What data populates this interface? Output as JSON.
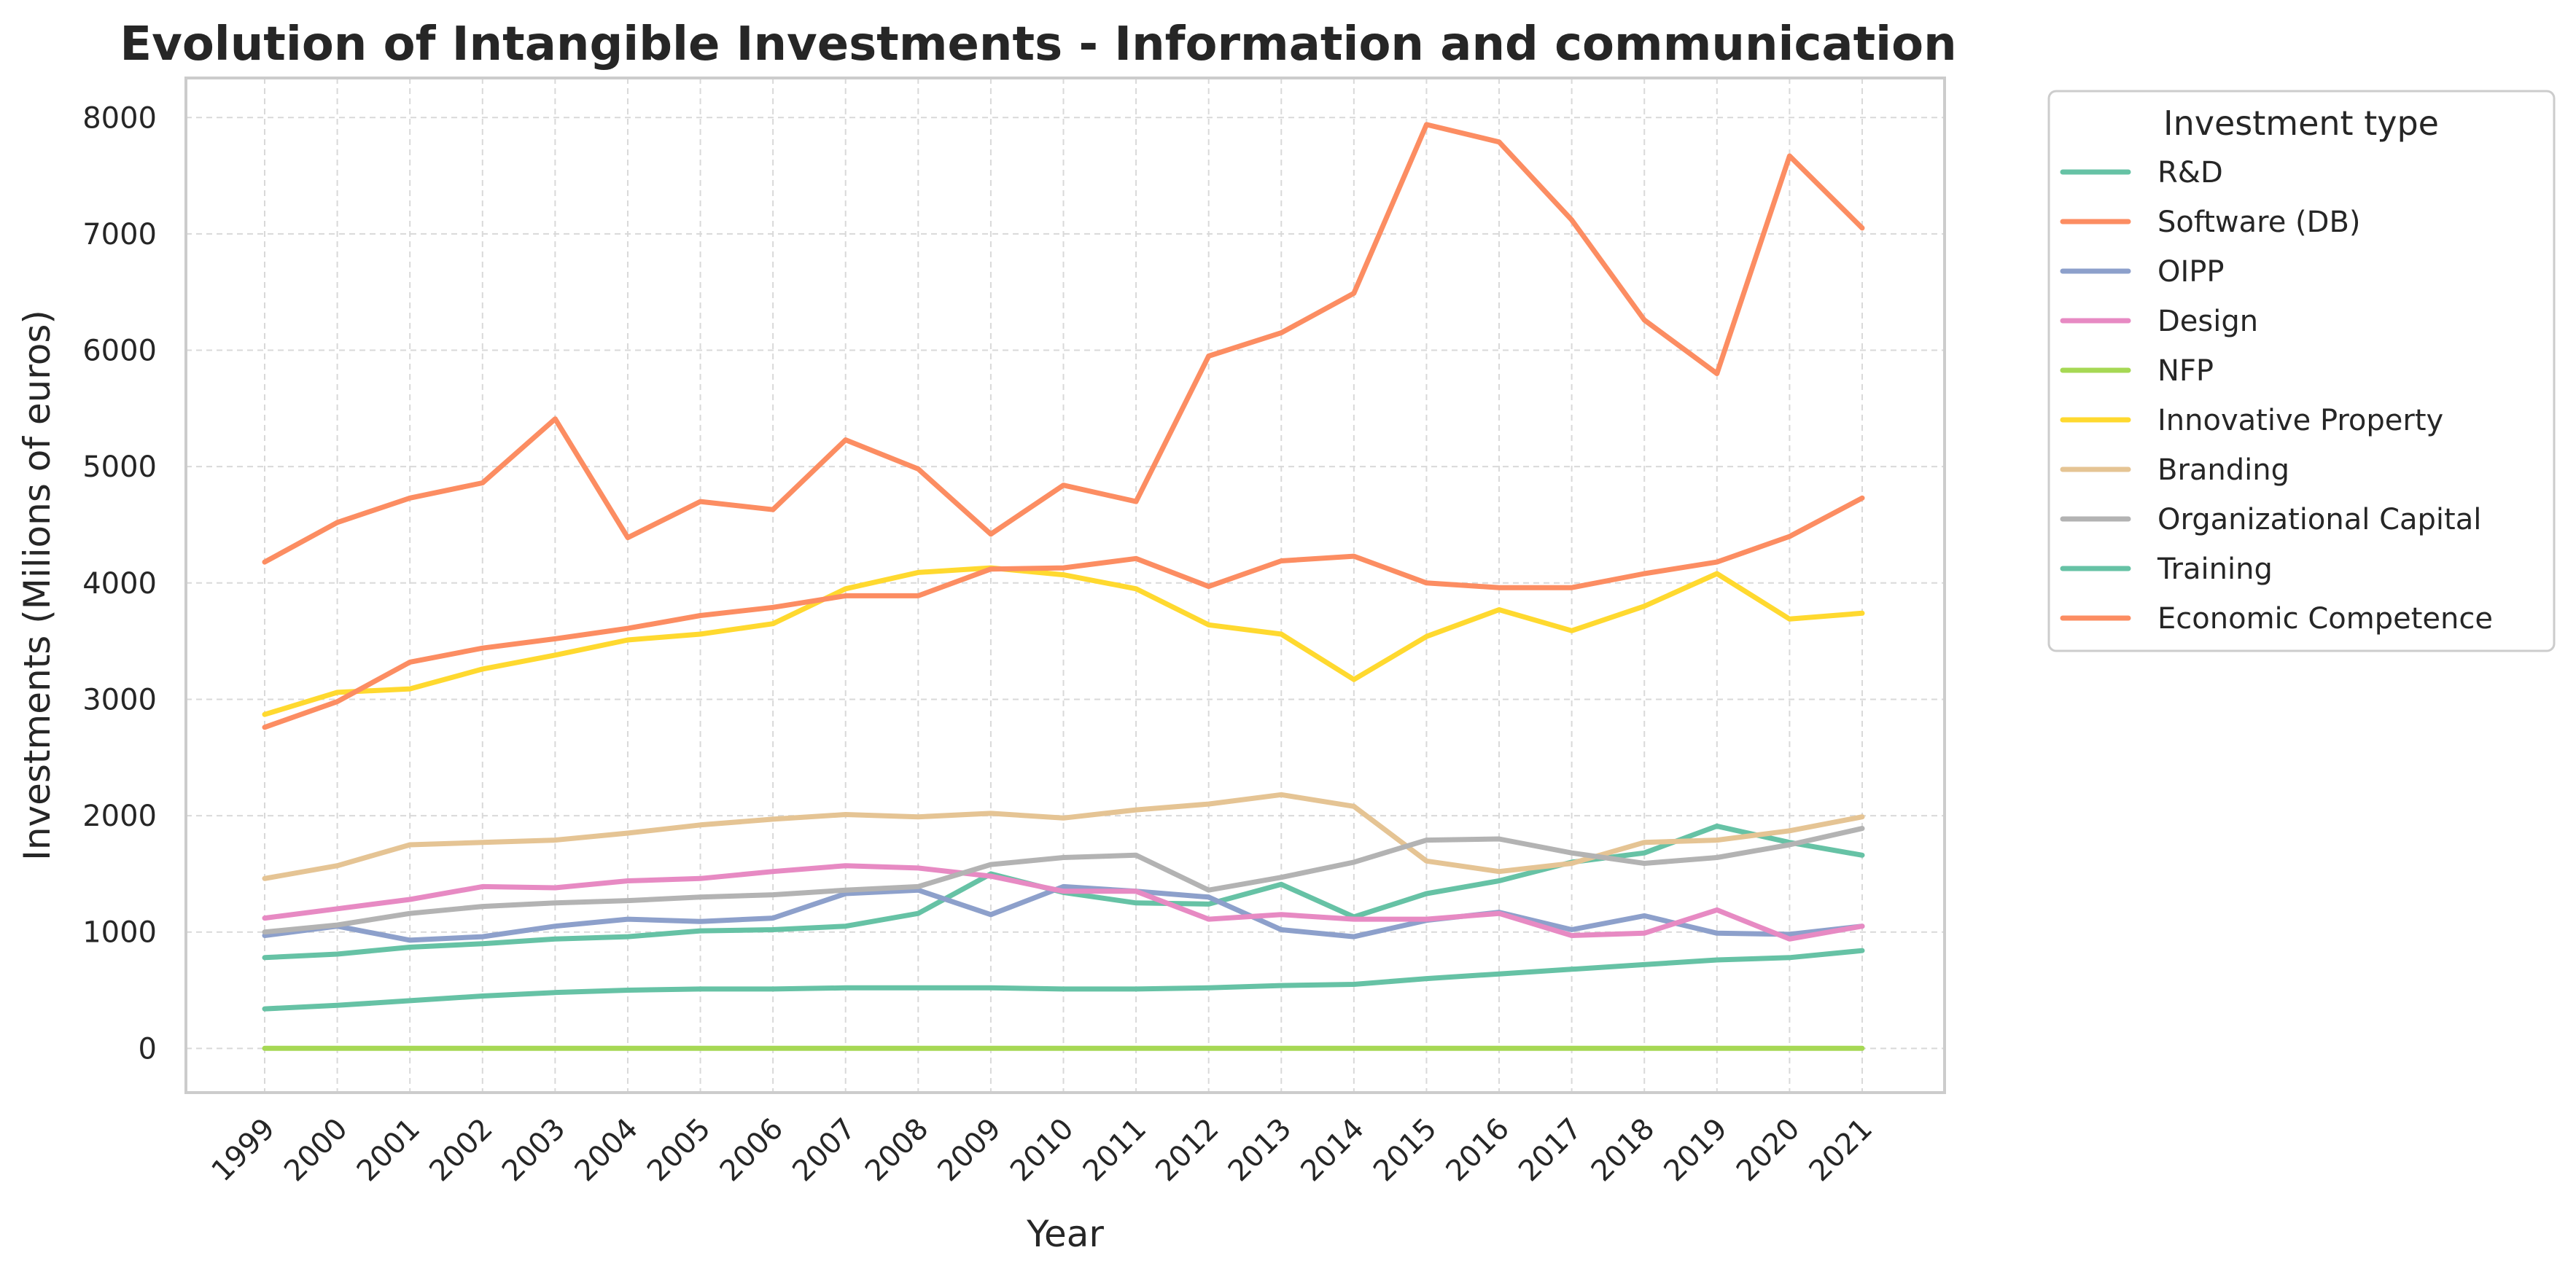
{
  "chart_data": {
    "type": "line",
    "title": "Evolution of Intangible Investments - Information and communication",
    "xlabel": "Year",
    "ylabel": "Investments (Milions of euros)",
    "ylim": [
      -380,
      8340
    ],
    "yticks": [
      0,
      1000,
      2000,
      3000,
      4000,
      5000,
      6000,
      7000,
      8000
    ],
    "grid": true,
    "legend_title": "Investment type",
    "legend_position": "outside-right-top",
    "x": [
      "1999",
      "2000",
      "2001",
      "2002",
      "2003",
      "2004",
      "2005",
      "2006",
      "2007",
      "2008",
      "2009",
      "2010",
      "2011",
      "2012",
      "2013",
      "2014",
      "2015",
      "2016",
      "2017",
      "2018",
      "2019",
      "2020",
      "2021"
    ],
    "series": [
      {
        "name": "R&D",
        "color": "#66c2a5",
        "values": [
          780,
          810,
          870,
          900,
          940,
          960,
          1010,
          1020,
          1050,
          1160,
          1500,
          1340,
          1250,
          1240,
          1410,
          1130,
          1330,
          1440,
          1600,
          1680,
          1910,
          1770,
          1660
        ]
      },
      {
        "name": "Software (DB)",
        "color": "#fc8d62",
        "values": [
          4180,
          4520,
          4730,
          4860,
          5410,
          4390,
          4700,
          4630,
          5230,
          4980,
          4420,
          4840,
          4700,
          5950,
          6150,
          6490,
          7940,
          7790,
          7120,
          6260,
          5800,
          7670,
          7050
        ]
      },
      {
        "name": "OIPP",
        "color": "#8da0cb",
        "values": [
          970,
          1050,
          930,
          960,
          1050,
          1110,
          1090,
          1120,
          1330,
          1360,
          1150,
          1390,
          1350,
          1300,
          1020,
          960,
          1100,
          1170,
          1020,
          1140,
          990,
          980,
          1050
        ]
      },
      {
        "name": "Design",
        "color": "#e78ac3",
        "values": [
          1120,
          1200,
          1280,
          1390,
          1380,
          1440,
          1460,
          1520,
          1570,
          1550,
          1480,
          1350,
          1350,
          1110,
          1150,
          1110,
          1110,
          1160,
          970,
          990,
          1190,
          940,
          1050
        ]
      },
      {
        "name": "NFP",
        "color": "#a6d854",
        "values": [
          0,
          0,
          0,
          0,
          0,
          0,
          0,
          0,
          0,
          0,
          0,
          0,
          0,
          0,
          0,
          0,
          0,
          0,
          0,
          0,
          0,
          0,
          0
        ]
      },
      {
        "name": "Innovative Property",
        "color": "#ffd92f",
        "values": [
          2870,
          3060,
          3090,
          3260,
          3380,
          3510,
          3560,
          3650,
          3950,
          4090,
          4130,
          4070,
          3950,
          3640,
          3560,
          3170,
          3540,
          3770,
          3590,
          3800,
          4080,
          3690,
          3740
        ]
      },
      {
        "name": "Branding",
        "color": "#e5c494",
        "values": [
          1460,
          1570,
          1750,
          1770,
          1790,
          1850,
          1920,
          1970,
          2010,
          1990,
          2020,
          1980,
          2050,
          2100,
          2180,
          2080,
          1610,
          1520,
          1590,
          1770,
          1790,
          1870,
          1990
        ]
      },
      {
        "name": "Organizational Capital",
        "color": "#b3b3b3",
        "values": [
          1000,
          1060,
          1160,
          1220,
          1250,
          1270,
          1300,
          1320,
          1360,
          1390,
          1580,
          1640,
          1660,
          1360,
          1470,
          1600,
          1790,
          1800,
          1680,
          1590,
          1640,
          1750,
          1890
        ]
      },
      {
        "name": "Training",
        "color": "#66c2a5",
        "values": [
          340,
          370,
          410,
          450,
          480,
          500,
          510,
          510,
          520,
          520,
          520,
          510,
          510,
          520,
          540,
          550,
          600,
          640,
          680,
          720,
          760,
          780,
          840
        ]
      },
      {
        "name": "Economic Competence",
        "color": "#fc8d62",
        "values": [
          2760,
          2980,
          3320,
          3440,
          3520,
          3610,
          3720,
          3790,
          3890,
          3890,
          4120,
          4130,
          4210,
          3970,
          4190,
          4230,
          4000,
          3960,
          3960,
          4080,
          4180,
          4400,
          4730
        ]
      }
    ]
  }
}
